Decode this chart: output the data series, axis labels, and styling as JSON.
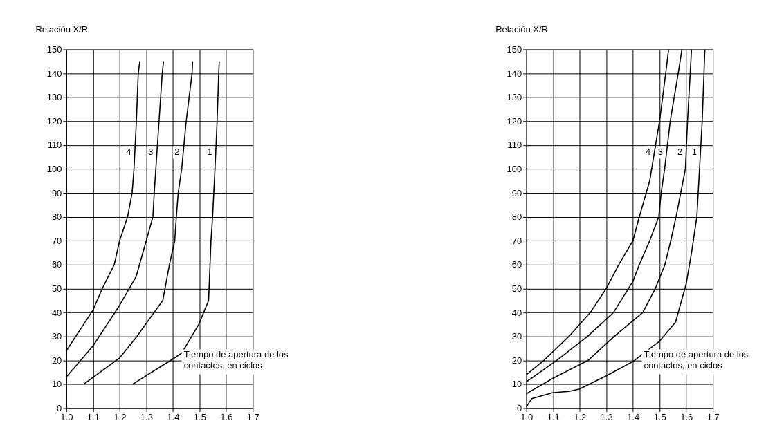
{
  "chart_data": [
    {
      "type": "line",
      "ylabel": "Relación X/R",
      "xlim": [
        1.0,
        1.7
      ],
      "xticks": [
        {
          "value": 1.0,
          "label": "1.0"
        },
        1.1,
        1.2,
        1.3,
        1.4,
        1.5,
        1.6,
        1.7
      ],
      "ylim": [
        0,
        150
      ],
      "yticks": [
        0,
        10,
        20,
        30,
        40,
        50,
        60,
        70,
        80,
        90,
        100,
        110,
        120,
        130,
        140,
        150
      ],
      "grid": true,
      "legend": false,
      "marker": "none",
      "line_style": "solid",
      "annotations": [
        "Tiempo de apertura de los contactos, en ciclos"
      ],
      "series": [
        {
          "name": "4",
          "color": "#000000",
          "x": [
            1.0,
            1.1,
            1.135,
            1.18,
            1.2,
            1.23,
            1.247,
            1.254,
            1.263,
            1.27,
            1.276
          ],
          "values": [
            24,
            41,
            50,
            60,
            70,
            80,
            90,
            100,
            120,
            140,
            145
          ]
        },
        {
          "name": "3",
          "color": "#000000",
          "x": [
            1.0,
            1.1,
            1.2,
            1.262,
            1.3,
            1.325,
            1.33,
            1.336,
            1.348,
            1.36,
            1.365
          ],
          "values": [
            13,
            26,
            43,
            55,
            70,
            80,
            90,
            100,
            120,
            140,
            145
          ]
        },
        {
          "name": "2",
          "color": "#000000",
          "x": [
            1.065,
            1.2,
            1.265,
            1.297,
            1.362,
            1.387,
            1.407,
            1.413,
            1.42,
            1.433,
            1.45,
            1.472,
            1.474
          ],
          "values": [
            10,
            21,
            30,
            35,
            45,
            60,
            70,
            80,
            90,
            100,
            120,
            140,
            145
          ]
        },
        {
          "name": "1",
          "color": "#000000",
          "x": [
            1.249,
            1.392,
            1.433,
            1.497,
            1.534,
            1.543,
            1.549,
            1.558,
            1.566,
            1.572,
            1.574
          ],
          "values": [
            10,
            20,
            23,
            35,
            45,
            70,
            80,
            100,
            120,
            140,
            145
          ]
        }
      ]
    },
    {
      "type": "line",
      "ylabel": "Relación X/R",
      "xlim": [
        1.0,
        1.7
      ],
      "xticks": [
        {
          "value": 1.0,
          "label": "1.0"
        },
        1.1,
        1.2,
        1.3,
        1.4,
        1.5,
        1.6,
        1.7
      ],
      "ylim": [
        0,
        150
      ],
      "yticks": [
        0,
        10,
        20,
        30,
        40,
        50,
        60,
        70,
        80,
        90,
        100,
        110,
        120,
        130,
        140,
        150
      ],
      "grid": true,
      "legend": false,
      "marker": "none",
      "line_style": "solid",
      "annotations": [
        "Tiempo de apertura de los contactos, en ciclos"
      ],
      "series": [
        {
          "name": "4",
          "color": "#000000",
          "x": [
            1.0,
            1.066,
            1.16,
            1.24,
            1.3,
            1.347,
            1.4,
            1.424,
            1.45,
            1.463,
            1.485,
            1.5,
            1.523,
            1.534
          ],
          "values": [
            14,
            20,
            30,
            40,
            50,
            60,
            70,
            80,
            90,
            95,
            110,
            120,
            140,
            150
          ]
        },
        {
          "name": "3",
          "color": "#000000",
          "x": [
            1.0,
            1.114,
            1.23,
            1.327,
            1.4,
            1.424,
            1.463,
            1.497,
            1.506,
            1.519,
            1.54,
            1.57,
            1.584
          ],
          "values": [
            11,
            20,
            30,
            40,
            53,
            60,
            70,
            80,
            90,
            100,
            120,
            140,
            150
          ]
        },
        {
          "name": "2",
          "color": "#000000",
          "x": [
            1.0,
            1.1,
            1.232,
            1.33,
            1.437,
            1.484,
            1.52,
            1.542,
            1.562,
            1.597,
            1.605,
            1.615,
            1.62
          ],
          "values": [
            6,
            12.5,
            20,
            30,
            40,
            50,
            60,
            70,
            80,
            100,
            120,
            140,
            150
          ]
        },
        {
          "name": "1",
          "color": "#000000",
          "x": [
            1.0,
            1.02,
            1.1,
            1.16,
            1.2,
            1.3,
            1.4,
            1.5,
            1.56,
            1.6,
            1.62,
            1.64,
            1.65,
            1.66,
            1.67
          ],
          "values": [
            0.5,
            4,
            6.5,
            7,
            8,
            13.5,
            19.5,
            28,
            36,
            52,
            65,
            80,
            100,
            120,
            150
          ]
        }
      ]
    }
  ]
}
